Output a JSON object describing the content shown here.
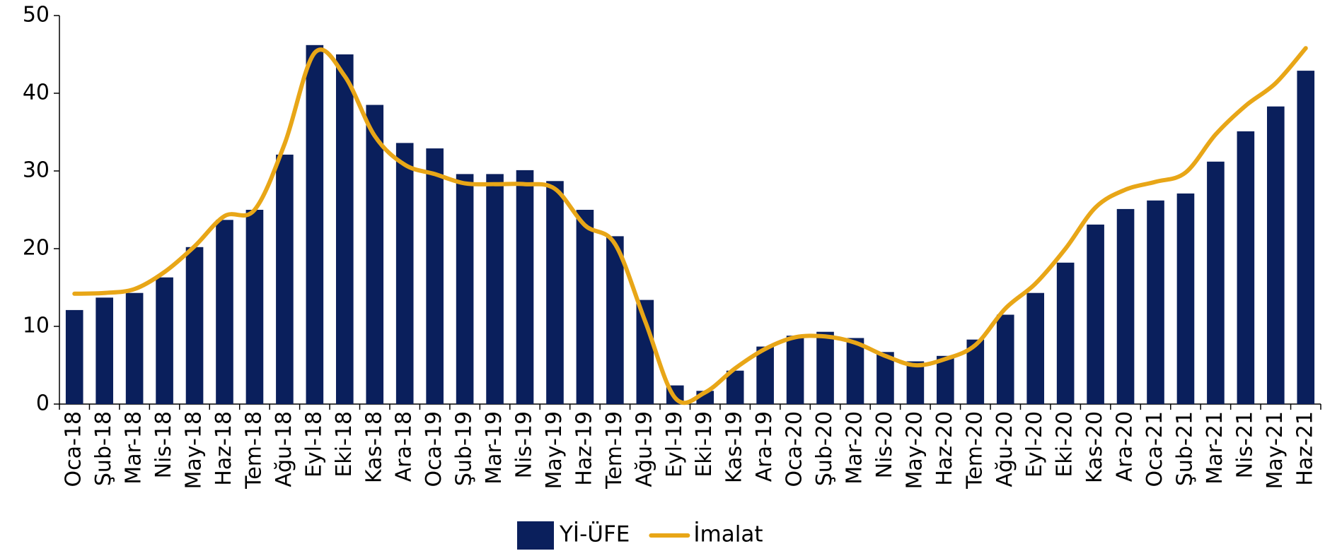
{
  "chart_data": {
    "type": "bar_line",
    "categories": [
      "Oca-18",
      "Şub-18",
      "Mar-18",
      "Nis-18",
      "May-18",
      "Haz-18",
      "Tem-18",
      "Ağu-18",
      "Eyl-18",
      "Eki-18",
      "Kas-18",
      "Ara-18",
      "Oca-19",
      "Şub-19",
      "Mar-19",
      "Nis-19",
      "May-19",
      "Haz-19",
      "Tem-19",
      "Ağu-19",
      "Eyl-19",
      "Eki-19",
      "Kas-19",
      "Ara-19",
      "Oca-20",
      "Şub-20",
      "Mar-20",
      "Nis-20",
      "May-20",
      "Haz-20",
      "Tem-20",
      "Ağu-20",
      "Eyl-20",
      "Eki-20",
      "Kas-20",
      "Ara-20",
      "Oca-21",
      "Şub-21",
      "Mar-21",
      "Nis-21",
      "May-21",
      "Haz-21"
    ],
    "series": [
      {
        "name": "Yİ-ÜFE",
        "type": "bar",
        "color": "#0a1f5c",
        "values": [
          12.1,
          13.7,
          14.3,
          16.3,
          20.2,
          23.7,
          25.0,
          32.1,
          46.2,
          45.0,
          38.5,
          33.6,
          32.9,
          29.6,
          29.6,
          30.1,
          28.7,
          25.0,
          21.6,
          13.4,
          2.4,
          1.7,
          4.3,
          7.4,
          8.8,
          9.3,
          8.5,
          6.7,
          5.5,
          6.2,
          8.3,
          11.5,
          14.3,
          18.2,
          23.1,
          25.1,
          26.2,
          27.1,
          31.2,
          35.1,
          38.3,
          42.9
        ]
      },
      {
        "name": "İmalat",
        "type": "line",
        "color": "#e8a617",
        "values": [
          14.2,
          14.3,
          14.8,
          17.0,
          20.3,
          24.2,
          25.0,
          33.5,
          45.2,
          42.2,
          34.5,
          30.8,
          29.6,
          28.4,
          28.3,
          28.3,
          27.7,
          23.0,
          20.6,
          10.7,
          0.8,
          1.5,
          4.6,
          7.1,
          8.6,
          8.7,
          7.9,
          6.2,
          5.0,
          5.8,
          7.6,
          12.3,
          15.5,
          20.0,
          25.3,
          27.6,
          28.6,
          29.8,
          34.7,
          38.4,
          41.3,
          45.8
        ]
      }
    ],
    "ylim": [
      0,
      50
    ],
    "yticks": [
      0,
      10,
      20,
      30,
      40,
      50
    ],
    "legend": "bottom"
  }
}
